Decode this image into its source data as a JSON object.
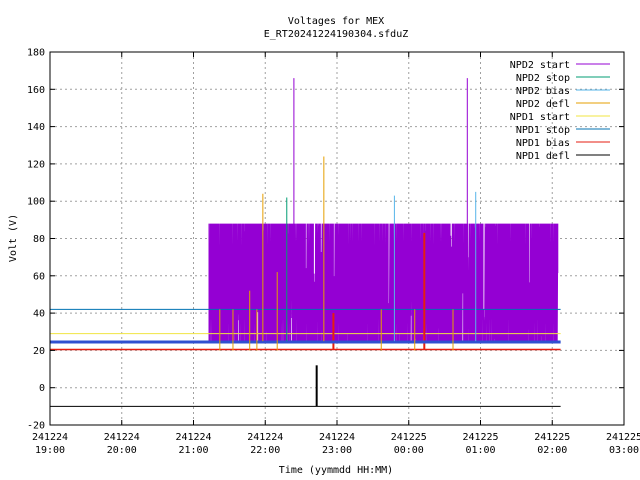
{
  "chart_data": {
    "type": "line",
    "title": "Voltages for MEX",
    "subtitle": "E_RT20241224190304.sfduZ",
    "xlabel": "Time (yymmdd HH:MM)",
    "ylabel": "Volt (V)",
    "ylim": [
      -20,
      180
    ],
    "yticks": [
      -20,
      0,
      20,
      40,
      60,
      80,
      100,
      120,
      140,
      160,
      180
    ],
    "xlim": [
      "241224 19:00",
      "241225 03:00"
    ],
    "xticks": [
      {
        "date": "241224",
        "time": "19:00"
      },
      {
        "date": "241224",
        "time": "20:00"
      },
      {
        "date": "241224",
        "time": "21:00"
      },
      {
        "date": "241224",
        "time": "22:00"
      },
      {
        "date": "241224",
        "time": "23:00"
      },
      {
        "date": "241225",
        "time": "00:00"
      },
      {
        "date": "241225",
        "time": "01:00"
      },
      {
        "date": "241225",
        "time": "02:00"
      },
      {
        "date": "241225",
        "time": "03:00"
      }
    ],
    "grid": true,
    "legend_position": "top-right",
    "series": [
      {
        "name": "NPD2 start",
        "color": "#9400d3",
        "baseline": 25,
        "plateau": 88,
        "active": [
          "241224 21:13",
          "241225 02:05"
        ],
        "spikes": [
          {
            "x": "241224 22:24",
            "y": 166
          },
          {
            "x": "241225 00:49",
            "y": 166
          }
        ]
      },
      {
        "name": "NPD2 stop",
        "color": "#009e73",
        "points": [
          {
            "x": "241224 22:18",
            "y": 102
          }
        ]
      },
      {
        "name": "NPD2 bias",
        "color": "#56b4e9",
        "points": [
          {
            "x": "241224 23:48",
            "y": 103
          },
          {
            "x": "241225 00:56",
            "y": 105
          }
        ]
      },
      {
        "name": "NPD2 defl",
        "color": "#e69f00",
        "points": [
          {
            "x": "241224 21:58",
            "y": 104
          },
          {
            "x": "241224 22:49",
            "y": 124
          }
        ]
      },
      {
        "name": "NPD1 start",
        "color": "#f0e442",
        "level": 29,
        "range": [
          "241224 19:00",
          "241225 02:07"
        ]
      },
      {
        "name": "NPD1 stop",
        "color": "#0072b2",
        "level": 42,
        "range": [
          "241224 19:00",
          "241225 02:07"
        ]
      },
      {
        "name": "NPD1 bias",
        "color": "#e51e10",
        "level": 20.5,
        "range": [
          "241224 19:00",
          "241225 02:07"
        ],
        "spikes": [
          {
            "x": "241224 22:57",
            "y": 40
          },
          {
            "x": "241225 00:13",
            "y": 83
          }
        ]
      },
      {
        "name": "NPD1 defl",
        "color": "#000000",
        "level": -10,
        "range": [
          "241224 19:00",
          "241225 02:07"
        ],
        "spikes": [
          {
            "x": "241224 22:43",
            "y": 12
          }
        ]
      }
    ],
    "extra_lines": [
      {
        "color": "#3050d0",
        "level": 24.5,
        "range": [
          "241224 19:00",
          "241225 02:07"
        ]
      }
    ]
  }
}
